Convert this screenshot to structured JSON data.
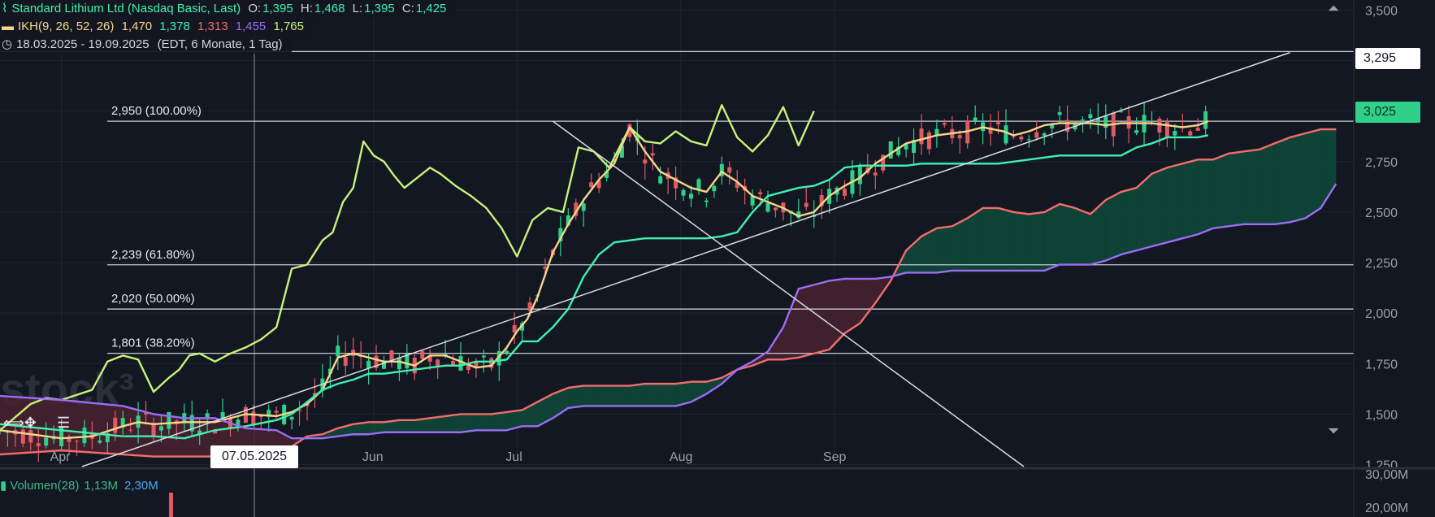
{
  "legend": {
    "symbol_line": "Standard Lithium Ltd (Nasdaq Basic, Last)",
    "ohlc": {
      "O": "1,395",
      "H": "1,468",
      "L": "1,395",
      "C": "1,425"
    },
    "ohlc_labels": {
      "O": "O:",
      "H": "H:",
      "L": "L:",
      "C": "C:"
    },
    "ikh_label": "IKH(9, 26, 52, 26)",
    "ikh_values": [
      "1,470",
      "1,378",
      "1,313",
      "1,455",
      "1,765"
    ],
    "range_text": "18.03.2025 - 19.09.2025",
    "range_detail": "(EDT, 6 Monate, 1 Tag)"
  },
  "volume": {
    "label": "Volumen(28)",
    "values": [
      "1,13M",
      "2,30M"
    ]
  },
  "badges": {
    "last_price": "3,025",
    "line_price": "3,295",
    "crosshair_date": "07.05.2025"
  },
  "colors": {
    "background": "#131722",
    "tenkan": "#f5d58a",
    "kijun": "#3ff0b0",
    "span_a": "#f26d6d",
    "span_b": "#9b6cf5",
    "chikou": "#c6f27a",
    "up": "#2fd08a",
    "down": "#e05a64",
    "cloud_bull": "#0f4a3a",
    "cloud_bear": "#4a2230"
  },
  "chart_data": {
    "type": "line",
    "y_axis": {
      "ticks": [
        "3,500",
        "3,250",
        "3,000",
        "2,750",
        "2,500",
        "2,250",
        "2,000",
        "1,750",
        "1,500",
        "1,250"
      ],
      "range": [
        1.24,
        3.55
      ]
    },
    "x_axis": {
      "ticks": [
        "Apr",
        "Jun",
        "Jul",
        "Aug",
        "Sep"
      ]
    },
    "volume_axis": {
      "ticks": [
        "30,00M",
        "20,00M"
      ]
    },
    "fib_levels": [
      {
        "label": "2,950 (100.00%)",
        "value": 2.95
      },
      {
        "label": "2,239 (61.80%)",
        "value": 2.239
      },
      {
        "label": "2,020 (50.00%)",
        "value": 2.02
      },
      {
        "label": "1,801 (38.20%)",
        "value": 1.801
      }
    ],
    "horizontal_line": 3.295,
    "series": [
      {
        "key": "chikou",
        "x": [
          0,
          6,
          9,
          12,
          18,
          21,
          24,
          27,
          30,
          33,
          35,
          37,
          39,
          42,
          45,
          48,
          51,
          54,
          57,
          60,
          63,
          65,
          67,
          69,
          71,
          73,
          75,
          77,
          79,
          81,
          84,
          86,
          89,
          92,
          95,
          98,
          101,
          104,
          107,
          110,
          113,
          116,
          119,
          121,
          123,
          126,
          129,
          132,
          135,
          138,
          141,
          144,
          147,
          150,
          153,
          156,
          159
        ],
        "y": [
          1.42,
          1.55,
          1.58,
          1.57,
          1.62,
          1.76,
          1.79,
          1.77,
          1.61,
          1.68,
          1.72,
          1.79,
          1.8,
          1.76,
          1.8,
          1.83,
          1.87,
          1.93,
          2.22,
          2.24,
          2.36,
          2.4,
          2.55,
          2.62,
          2.85,
          2.78,
          2.75,
          2.68,
          2.62,
          2.66,
          2.72,
          2.69,
          2.63,
          2.58,
          2.52,
          2.42,
          2.28,
          2.46,
          2.52,
          2.5,
          2.82,
          2.8,
          2.72,
          2.82,
          2.92,
          2.85,
          2.84,
          2.9,
          2.85,
          2.83,
          3.03,
          2.87,
          2.8,
          2.88,
          3.02,
          2.83,
          3.0
        ]
      },
      {
        "key": "tenkan",
        "x": [
          0,
          6,
          12,
          18,
          24,
          27,
          30,
          36,
          42,
          45,
          48,
          54,
          57,
          60,
          63,
          66,
          69,
          72,
          75,
          78,
          81,
          84,
          87,
          90,
          93,
          96,
          99,
          101,
          103,
          105,
          108,
          111,
          114,
          117,
          120,
          123,
          126,
          129,
          132,
          135,
          138,
          141,
          144,
          147,
          150,
          153,
          156,
          159,
          162,
          165,
          168,
          171,
          174,
          177,
          180,
          183,
          186,
          189,
          192,
          196,
          198,
          201,
          204,
          207,
          210,
          213,
          216,
          219,
          222,
          225,
          228,
          231,
          234,
          236
        ],
        "y": [
          1.42,
          1.4,
          1.38,
          1.39,
          1.44,
          1.46,
          1.45,
          1.46,
          1.46,
          1.48,
          1.5,
          1.49,
          1.51,
          1.55,
          1.62,
          1.78,
          1.8,
          1.78,
          1.76,
          1.76,
          1.74,
          1.79,
          1.79,
          1.76,
          1.73,
          1.74,
          1.83,
          1.91,
          1.97,
          2.08,
          2.3,
          2.44,
          2.56,
          2.66,
          2.74,
          2.92,
          2.8,
          2.7,
          2.66,
          2.62,
          2.6,
          2.7,
          2.65,
          2.58,
          2.55,
          2.52,
          2.48,
          2.5,
          2.58,
          2.63,
          2.67,
          2.74,
          2.79,
          2.84,
          2.86,
          2.88,
          2.89,
          2.9,
          2.92,
          2.9,
          2.88,
          2.9,
          2.93,
          2.94,
          2.94,
          2.94,
          2.93,
          2.94,
          2.94,
          2.94,
          2.93,
          2.92,
          2.93,
          2.95
        ]
      },
      {
        "key": "kijun",
        "x": [
          0,
          12,
          24,
          30,
          36,
          42,
          48,
          54,
          57,
          60,
          63,
          66,
          69,
          72,
          75,
          78,
          81,
          84,
          87,
          90,
          93,
          96,
          99,
          102,
          105,
          108,
          111,
          114,
          117,
          120,
          123,
          126,
          129,
          132,
          135,
          138,
          141,
          144,
          147,
          150,
          153,
          156,
          159,
          162,
          165,
          168,
          171,
          174,
          177,
          180,
          183,
          186,
          189,
          192,
          195,
          198,
          201,
          204,
          207,
          210,
          213,
          216,
          219,
          222,
          225,
          228,
          231,
          234,
          236
        ],
        "y": [
          1.45,
          1.42,
          1.39,
          1.39,
          1.38,
          1.42,
          1.44,
          1.47,
          1.5,
          1.56,
          1.62,
          1.65,
          1.67,
          1.7,
          1.7,
          1.71,
          1.72,
          1.73,
          1.74,
          1.74,
          1.76,
          1.76,
          1.77,
          1.86,
          1.86,
          1.93,
          2.02,
          2.18,
          2.29,
          2.35,
          2.36,
          2.37,
          2.37,
          2.37,
          2.37,
          2.37,
          2.38,
          2.4,
          2.5,
          2.58,
          2.6,
          2.62,
          2.63,
          2.66,
          2.72,
          2.73,
          2.73,
          2.73,
          2.73,
          2.74,
          2.74,
          2.74,
          2.74,
          2.74,
          2.74,
          2.75,
          2.76,
          2.77,
          2.78,
          2.78,
          2.78,
          2.78,
          2.78,
          2.82,
          2.84,
          2.87,
          2.87,
          2.87,
          2.88
        ]
      },
      {
        "key": "span_a",
        "x": [
          0,
          12,
          24,
          30,
          36,
          42,
          48,
          54,
          57,
          60,
          63,
          66,
          69,
          72,
          75,
          78,
          81,
          84,
          87,
          90,
          93,
          96,
          99,
          102,
          105,
          108,
          111,
          114,
          117,
          120,
          123,
          126,
          129,
          132,
          135,
          138,
          141,
          144,
          147,
          150,
          153,
          156,
          159,
          162,
          165,
          168,
          171,
          174,
          177,
          180,
          183,
          186,
          189,
          192,
          195,
          198,
          201,
          204,
          207,
          210,
          213,
          216,
          219,
          222,
          225,
          228,
          231,
          234,
          237,
          240,
          243,
          246,
          249,
          252,
          255,
          258,
          261
        ],
        "y": [
          1.3,
          1.32,
          1.3,
          1.29,
          1.29,
          1.29,
          1.3,
          1.31,
          1.34,
          1.39,
          1.4,
          1.43,
          1.45,
          1.46,
          1.46,
          1.47,
          1.47,
          1.48,
          1.49,
          1.5,
          1.5,
          1.5,
          1.51,
          1.52,
          1.56,
          1.6,
          1.63,
          1.64,
          1.64,
          1.64,
          1.64,
          1.65,
          1.65,
          1.65,
          1.66,
          1.66,
          1.68,
          1.72,
          1.74,
          1.77,
          1.77,
          1.78,
          1.8,
          1.82,
          1.9,
          1.95,
          2.05,
          2.16,
          2.31,
          2.38,
          2.42,
          2.43,
          2.47,
          2.52,
          2.52,
          2.5,
          2.49,
          2.5,
          2.54,
          2.52,
          2.49,
          2.56,
          2.6,
          2.62,
          2.69,
          2.72,
          2.74,
          2.76,
          2.76,
          2.79,
          2.8,
          2.81,
          2.84,
          2.87,
          2.89,
          2.91,
          2.91
        ]
      },
      {
        "key": "span_b",
        "x": [
          0,
          12,
          24,
          30,
          36,
          42,
          48,
          54,
          57,
          60,
          63,
          66,
          69,
          72,
          75,
          78,
          81,
          84,
          87,
          90,
          93,
          96,
          99,
          102,
          105,
          108,
          111,
          114,
          117,
          120,
          123,
          126,
          129,
          132,
          135,
          138,
          141,
          144,
          147,
          150,
          153,
          156,
          159,
          162,
          165,
          168,
          171,
          174,
          177,
          180,
          183,
          186,
          189,
          192,
          195,
          198,
          201,
          204,
          207,
          210,
          213,
          216,
          219,
          222,
          225,
          228,
          231,
          234,
          237,
          240,
          243,
          246,
          249,
          252,
          255,
          258,
          261
        ],
        "y": [
          1.59,
          1.57,
          1.54,
          1.5,
          1.48,
          1.48,
          1.43,
          1.42,
          1.38,
          1.38,
          1.38,
          1.39,
          1.4,
          1.4,
          1.41,
          1.41,
          1.41,
          1.41,
          1.41,
          1.41,
          1.42,
          1.42,
          1.42,
          1.44,
          1.44,
          1.48,
          1.53,
          1.54,
          1.54,
          1.54,
          1.54,
          1.54,
          1.54,
          1.54,
          1.56,
          1.6,
          1.65,
          1.72,
          1.76,
          1.81,
          1.93,
          2.12,
          2.14,
          2.16,
          2.17,
          2.17,
          2.17,
          2.18,
          2.2,
          2.2,
          2.2,
          2.21,
          2.21,
          2.21,
          2.21,
          2.21,
          2.21,
          2.21,
          2.24,
          2.24,
          2.24,
          2.26,
          2.29,
          2.31,
          2.33,
          2.35,
          2.37,
          2.39,
          2.42,
          2.43,
          2.44,
          2.44,
          2.44,
          2.45,
          2.47,
          2.52,
          2.64
        ]
      },
      {
        "key": "trend_up",
        "x": [
          16,
          252
        ],
        "y": [
          1.24,
          3.29
        ]
      },
      {
        "key": "trend_down",
        "x": [
          108,
          200
        ],
        "y": [
          2.95,
          1.24
        ]
      }
    ]
  }
}
